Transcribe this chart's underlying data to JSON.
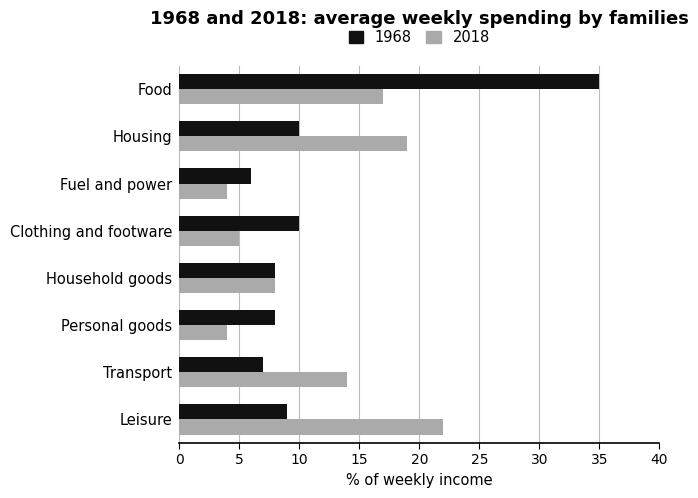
{
  "title": "1968 and 2018: average weekly spending by families",
  "categories": [
    "Food",
    "Housing",
    "Fuel and power",
    "Clothing and footware",
    "Household goods",
    "Personal goods",
    "Transport",
    "Leisure"
  ],
  "values_1968": [
    35,
    10,
    6,
    10,
    8,
    8,
    7,
    9
  ],
  "values_2018": [
    17,
    19,
    4,
    5,
    8,
    4,
    14,
    22
  ],
  "color_1968": "#111111",
  "color_2018": "#aaaaaa",
  "xlabel": "% of weekly income",
  "xlim": [
    0,
    40
  ],
  "xticks": [
    0,
    5,
    10,
    15,
    20,
    25,
    30,
    35,
    40
  ],
  "legend_labels": [
    "1968",
    "2018"
  ],
  "bar_height": 0.32,
  "background_color": "#ffffff",
  "title_fontsize": 13,
  "label_fontsize": 10.5,
  "tick_fontsize": 10
}
